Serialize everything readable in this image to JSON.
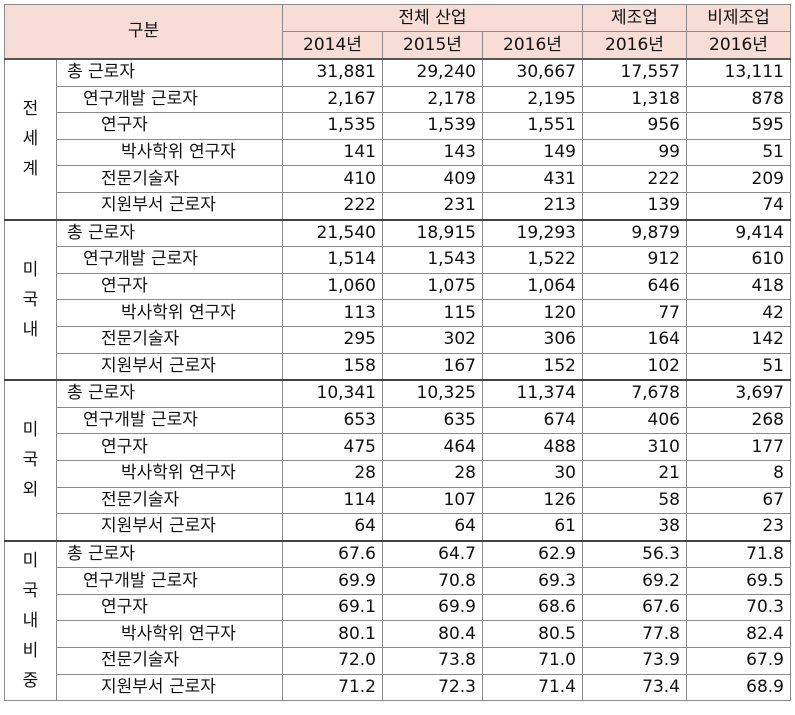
{
  "header": {
    "category_label": "구분",
    "groups": [
      "전체 산업",
      "제조업",
      "비제조업"
    ],
    "years": [
      "2014년",
      "2015년",
      "2016년",
      "2016년",
      "2016년"
    ]
  },
  "sections": [
    {
      "label": "전세계",
      "rows": [
        {
          "name": "총 근로자",
          "values": [
            "31,881",
            "29,240",
            "30,667",
            "17,557",
            "13,111"
          ]
        },
        {
          "name": "연구개발 근로자",
          "values": [
            "2,167",
            "2,178",
            "2,195",
            "1,318",
            "878"
          ]
        },
        {
          "name": "연구자",
          "values": [
            "1,535",
            "1,539",
            "1,551",
            "956",
            "595"
          ]
        },
        {
          "name": "박사학위 연구자",
          "values": [
            "141",
            "143",
            "149",
            "99",
            "51"
          ]
        },
        {
          "name": "전문기술자",
          "values": [
            "410",
            "409",
            "431",
            "222",
            "209"
          ]
        },
        {
          "name": "지원부서 근로자",
          "values": [
            "222",
            "231",
            "213",
            "139",
            "74"
          ]
        }
      ]
    },
    {
      "label": "미국내",
      "rows": [
        {
          "name": "총 근로자",
          "values": [
            "21,540",
            "18,915",
            "19,293",
            "9,879",
            "9,414"
          ]
        },
        {
          "name": "연구개발 근로자",
          "values": [
            "1,514",
            "1,543",
            "1,522",
            "912",
            "610"
          ]
        },
        {
          "name": "연구자",
          "values": [
            "1,060",
            "1,075",
            "1,064",
            "646",
            "418"
          ]
        },
        {
          "name": "박사학위 연구자",
          "values": [
            "113",
            "115",
            "120",
            "77",
            "42"
          ]
        },
        {
          "name": "전문기술자",
          "values": [
            "295",
            "302",
            "306",
            "164",
            "142"
          ]
        },
        {
          "name": "지원부서 근로자",
          "values": [
            "158",
            "167",
            "152",
            "102",
            "51"
          ]
        }
      ]
    },
    {
      "label": "미국외",
      "rows": [
        {
          "name": "총 근로자",
          "values": [
            "10,341",
            "10,325",
            "11,374",
            "7,678",
            "3,697"
          ]
        },
        {
          "name": "연구개발 근로자",
          "values": [
            "653",
            "635",
            "674",
            "406",
            "268"
          ]
        },
        {
          "name": "연구자",
          "values": [
            "475",
            "464",
            "488",
            "310",
            "177"
          ]
        },
        {
          "name": "박사학위 연구자",
          "values": [
            "28",
            "28",
            "30",
            "21",
            "8"
          ]
        },
        {
          "name": "전문기술자",
          "values": [
            "114",
            "107",
            "126",
            "58",
            "67"
          ]
        },
        {
          "name": "지원부서 근로자",
          "values": [
            "64",
            "64",
            "61",
            "38",
            "23"
          ]
        }
      ]
    },
    {
      "label": "미국내비중",
      "rows": [
        {
          "name": "총 근로자",
          "values": [
            "67.6",
            "64.7",
            "62.9",
            "56.3",
            "71.8"
          ]
        },
        {
          "name": "연구개발 근로자",
          "values": [
            "69.9",
            "70.8",
            "69.3",
            "69.2",
            "69.5"
          ]
        },
        {
          "name": "연구자",
          "values": [
            "69.1",
            "69.9",
            "68.6",
            "67.6",
            "70.3"
          ]
        },
        {
          "name": "박사학위 연구자",
          "values": [
            "80.1",
            "80.4",
            "80.5",
            "77.8",
            "82.4"
          ]
        },
        {
          "name": "전문기술자",
          "values": [
            "72.0",
            "73.8",
            "71.0",
            "73.9",
            "67.9"
          ]
        },
        {
          "name": "지원부서 근로자",
          "values": [
            "71.2",
            "72.3",
            "71.4",
            "73.4",
            "68.9"
          ]
        }
      ]
    }
  ]
}
